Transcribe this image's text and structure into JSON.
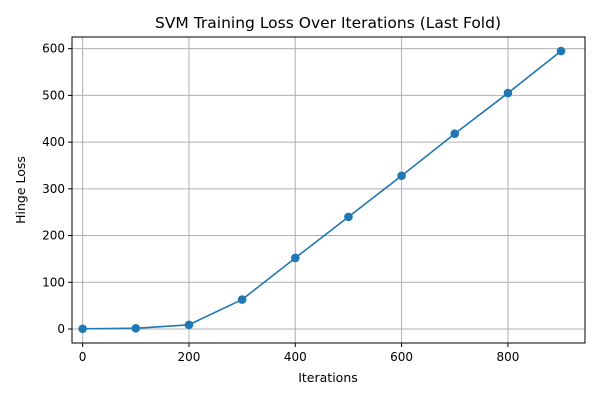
{
  "chart_data": {
    "type": "line",
    "title": "SVM Training Loss Over Iterations (Last Fold)",
    "xlabel": "Iterations",
    "ylabel": "Hinge Loss",
    "xlim": [
      -20,
      945
    ],
    "ylim": [
      -30,
      625
    ],
    "xticks": [
      0,
      200,
      400,
      600,
      800
    ],
    "yticks": [
      0,
      100,
      200,
      300,
      400,
      500,
      600
    ],
    "grid": true,
    "series": [
      {
        "color": "#1f77b4",
        "marker": "circle",
        "x": [
          0,
          100,
          200,
          300,
          400,
          500,
          600,
          700,
          800,
          900
        ],
        "y": [
          0.5,
          1.5,
          9,
          63,
          152,
          240,
          328,
          418,
          505,
          595
        ]
      }
    ]
  }
}
